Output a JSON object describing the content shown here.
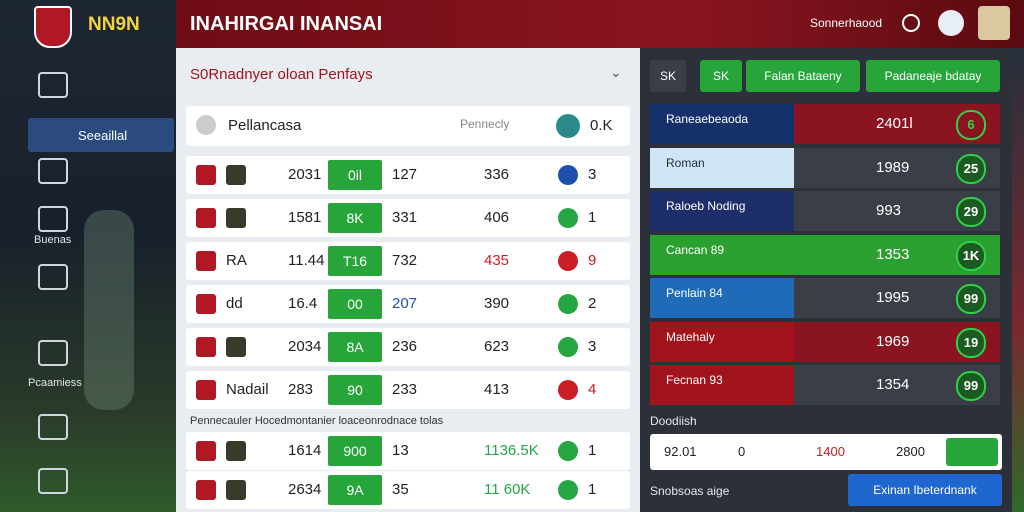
{
  "header": {
    "logo_text": "NN9N",
    "title": "INAHIRGAI INANSAI",
    "user_label": "Sonnerhaood"
  },
  "sidebar": {
    "items": [
      "Seeaillal",
      "Buenas",
      "Pcaamiess"
    ]
  },
  "main": {
    "title": "S0Rnadnyer oloan Penfays",
    "summary": {
      "name": "Pellancasa",
      "label": "Pennecly",
      "value": "0.K"
    },
    "rows": [
      {
        "a": "2031",
        "b": "0il",
        "c": "127",
        "d": "336",
        "badge": "blue",
        "e": "3"
      },
      {
        "a": "1581",
        "b": "8K",
        "c": "331",
        "d": "406",
        "badge": "green",
        "e": "1"
      },
      {
        "name": "RA",
        "a": "11.44",
        "b": "T16",
        "c": "732",
        "d": "435",
        "d_color": "red",
        "badge": "red",
        "e": "9"
      },
      {
        "name": "dd",
        "a": "16.4",
        "b": "00",
        "c": "207",
        "c_color": "blue",
        "d": "390",
        "badge": "green",
        "e": "2"
      },
      {
        "a": "2034",
        "b": "8A",
        "c": "236",
        "d": "623",
        "badge": "green",
        "e": "3"
      },
      {
        "name": "Nadail",
        "a": "283",
        "b": "90",
        "c": "233",
        "d": "413",
        "badge": "red",
        "e": "4"
      }
    ],
    "section_label": "Pennecauler Hocedmontanier loaceonrodnace tolas",
    "rows2": [
      {
        "a": "1614",
        "b": "900",
        "c": "13",
        "d": "1136.5K",
        "d_color": "green",
        "badge": "green",
        "e": "1"
      },
      {
        "a": "2634",
        "b": "9A",
        "c": "35",
        "d": "11 60K",
        "d_color": "green",
        "badge": "green",
        "e": "1"
      }
    ]
  },
  "side": {
    "tabs": [
      "SK",
      "SK",
      "Falan Bataeny",
      "Padaneaje bdatay"
    ],
    "rows": [
      {
        "label": "Raneaebeaoda",
        "value": "2401l",
        "badge": "6",
        "color": "#15306a",
        "row": "#8a1520"
      },
      {
        "label": "Roman",
        "value": "1989",
        "badge": "25",
        "color": "#cfe6f7",
        "row": "#3a3e46"
      },
      {
        "label": "Raloeb Noding",
        "value": "993",
        "badge": "29",
        "color": "#1d2f6a",
        "row": "#3a3e46"
      },
      {
        "label": "Cancan 89",
        "value": "1353",
        "badge": "1K",
        "color": "#2aa030",
        "row": "#2aa030"
      },
      {
        "label": "Penlain 84",
        "value": "1995",
        "badge": "99",
        "color": "#1f6bb8",
        "row": "#3a3e46"
      },
      {
        "label": "Matehaly",
        "value": "1969",
        "badge": "19",
        "color": "#a2141c",
        "row": "#8a1520"
      },
      {
        "label": "Fecnan 93",
        "value": "1354",
        "badge": "99",
        "color": "#a2141c",
        "row": "#3a3e46"
      }
    ],
    "footer_label": "Doodiish",
    "footer_row": [
      "92.01",
      "0",
      "1400",
      "2800"
    ],
    "bottom_label": "Snobsoas aige",
    "button": "Exinan Ibeterdnank"
  }
}
